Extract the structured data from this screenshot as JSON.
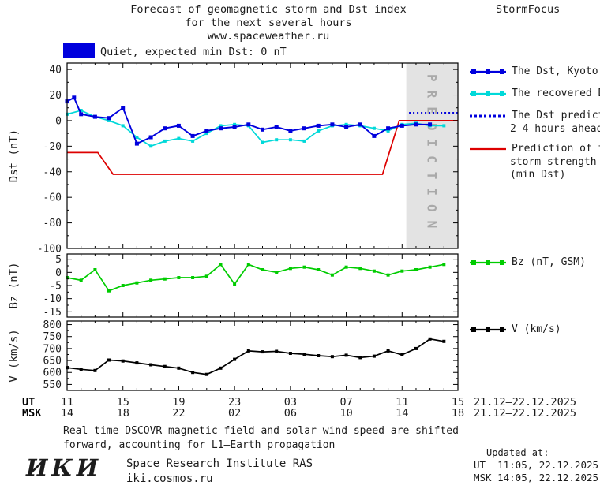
{
  "header": {
    "title_line1": "Forecast of geomagnetic storm and Dst index",
    "title_line2": "for the next several hours",
    "title_line3": "www.spaceweather.ru",
    "brand": "StormFocus",
    "status_label": "Quiet, expected min Dst: 0 nT",
    "status_color": "#0000dd"
  },
  "legend": {
    "dst_kyoto": "The Dst, Kyoto",
    "recovered": "The recovered Dst",
    "prediction_l1": "The Dst prediction",
    "prediction_l2": "2—4 hours ahead",
    "storm_l1": "Prediction of the",
    "storm_l2": "storm strength",
    "storm_l3": "(min Dst)",
    "bz": "Bz (nT, GSM)",
    "v": "V (km/s)"
  },
  "footer": {
    "note_line1": "Real—time DSCOVR magnetic field and solar wind speed are shifted",
    "note_line2": "forward, accounting for L1—Earth propagation",
    "updated_label": "Updated at:",
    "updated_ut": "UT  11:05, 22.12.2025",
    "updated_msk": "MSK 14:05, 22.12.2025",
    "logo": "ИКИ",
    "institute": "Space Research Institute RAS",
    "site": "iki.cosmos.ru"
  },
  "chart_data": {
    "type": "line",
    "title": "Forecast of geomagnetic storm and Dst index for the next several hours",
    "source": "www.spaceweather.ru",
    "xlim": [
      11,
      39
    ],
    "x_unit": "hour",
    "x_major_ticks": [
      11,
      15,
      19,
      23,
      27,
      31,
      35,
      39
    ],
    "x_minor_step": 1,
    "x_rows": [
      {
        "label": "UT",
        "tick_labels": [
          "11",
          "15",
          "19",
          "23",
          "03",
          "07",
          "11",
          "15"
        ],
        "suffix": "21.12—22.12.2025"
      },
      {
        "label": "MSK",
        "tick_labels": [
          "14",
          "18",
          "22",
          "02",
          "06",
          "10",
          "14",
          "18"
        ],
        "suffix": "21.12—22.12.2025"
      }
    ],
    "panels": [
      {
        "name": "dst",
        "ylabel": "Dst (nT)",
        "ylim": [
          -100,
          45
        ],
        "yticks": [
          40,
          20,
          0,
          -20,
          -40,
          -60,
          -80,
          -100
        ],
        "y_minor_step": 10,
        "prediction_region": {
          "x_start": 35.3,
          "x_end": 39,
          "label": "PREDICTION",
          "color": "#e3e3e3",
          "label_color": "#a9a9a9"
        },
        "series": [
          {
            "name": "Prediction of the storm strength (min Dst)",
            "color": "#dd0000",
            "width": 1.7,
            "x": [
              11,
              13.2,
              14.3,
              33.6,
              34.8,
              39
            ],
            "y": [
              -25,
              -25,
              -42,
              -42,
              0,
              0
            ]
          },
          {
            "name": "The recovered Dst",
            "color": "#00d9d9",
            "width": 1.7,
            "marker": 4,
            "x": [
              11,
              12,
              13,
              14,
              15,
              16,
              17,
              18,
              19,
              20,
              21,
              22,
              23,
              24,
              25,
              26,
              27,
              28,
              29,
              30,
              31,
              32,
              33,
              34,
              35,
              36,
              37,
              38
            ],
            "y": [
              5,
              8,
              3,
              0,
              -4,
              -13,
              -20,
              -16,
              -14,
              -16,
              -10,
              -4,
              -3,
              -4,
              -17,
              -15,
              -15,
              -16,
              -8,
              -4,
              -3,
              -4,
              -6,
              -8,
              -3,
              -2,
              -4,
              -4
            ]
          },
          {
            "name": "The Dst, Kyoto",
            "color": "#0000dd",
            "width": 1.9,
            "marker": 5,
            "x": [
              11,
              11.5,
              12,
              13,
              14,
              15,
              16,
              17,
              18,
              19,
              20,
              21,
              22,
              23,
              24,
              25,
              26,
              27,
              28,
              29,
              30,
              31,
              32,
              33,
              34,
              35,
              36,
              37
            ],
            "y": [
              15,
              18,
              5,
              3,
              2,
              10,
              -18,
              -13,
              -6,
              -4,
              -12,
              -8,
              -6,
              -5,
              -3,
              -7,
              -5,
              -8,
              -6,
              -4,
              -3,
              -5,
              -3,
              -12,
              -6,
              -4,
              -3,
              -3
            ]
          },
          {
            "name": "The Dst prediction 2—4 hours ahead",
            "color": "#0000dd",
            "width": 2.4,
            "dash": "2,3",
            "x": [
              35.5,
              39
            ],
            "y": [
              6,
              6
            ]
          }
        ]
      },
      {
        "name": "bz",
        "ylabel": "Bz (nT)",
        "ylim": [
          -17,
          7
        ],
        "yticks": [
          5,
          0,
          -5,
          -10,
          -15
        ],
        "y_minor_step": 2.5,
        "series": [
          {
            "name": "Bz (nT, GSM)",
            "color": "#00cc00",
            "width": 1.7,
            "marker": 4,
            "x": [
              11,
              12,
              13,
              14,
              15,
              16,
              17,
              18,
              19,
              20,
              21,
              22,
              23,
              24,
              25,
              26,
              27,
              28,
              29,
              30,
              31,
              32,
              33,
              34,
              35,
              36,
              37,
              38
            ],
            "y": [
              -2,
              -3,
              1,
              -7,
              -5,
              -4,
              -3,
              -2.5,
              -2,
              -2,
              -1.5,
              3,
              -4.5,
              3,
              1,
              0,
              1.5,
              2,
              1,
              -1,
              2,
              1.5,
              0.5,
              -1,
              0.5,
              1,
              2,
              3
            ]
          }
        ]
      },
      {
        "name": "v",
        "ylabel": "V (km/s)",
        "ylim": [
          525,
          815
        ],
        "yticks": [
          800,
          750,
          700,
          650,
          600,
          550
        ],
        "y_minor_step": 25,
        "series": [
          {
            "name": "V (km/s)",
            "color": "#000000",
            "width": 1.7,
            "marker": 4,
            "x": [
              11,
              12,
              13,
              14,
              15,
              16,
              17,
              18,
              19,
              20,
              21,
              22,
              23,
              24,
              25,
              26,
              27,
              28,
              29,
              30,
              31,
              32,
              33,
              34,
              35,
              36,
              37,
              38
            ],
            "y": [
              620,
              613,
              608,
              652,
              648,
              640,
              632,
              625,
              618,
              600,
              592,
              618,
              655,
              690,
              686,
              688,
              680,
              676,
              670,
              666,
              672,
              662,
              668,
              690,
              674,
              700,
              740,
              730
            ]
          }
        ]
      }
    ]
  }
}
